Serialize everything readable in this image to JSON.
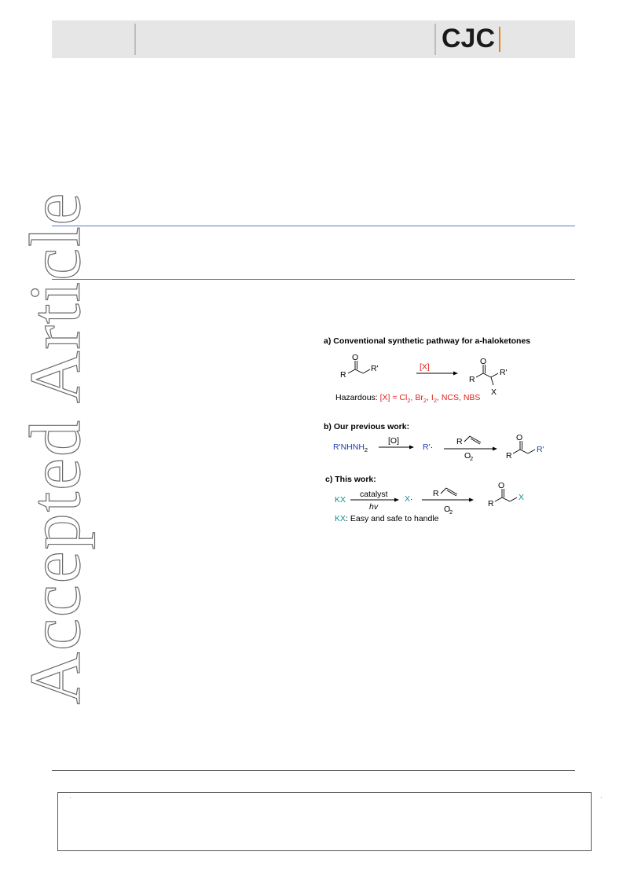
{
  "header": {
    "logo": "CJC"
  },
  "watermark": "Accepted Article",
  "scheme": {
    "a": {
      "title": "a) Conventional synthetic pathway for a-haloketones",
      "reagent": "[X]",
      "sm_r": "R",
      "sm_rp": "R'",
      "sm_o": "O",
      "prod_r": "R",
      "prod_rp": "R'",
      "prod_o": "O",
      "prod_x": "X",
      "hazard_label": "Hazardous:",
      "hazard_x": "[X] = Cl",
      "br": ", Br",
      "i": ", I",
      "rest": ", NCS, NBS",
      "sub2": "2"
    },
    "b": {
      "title": "b) Our previous work:",
      "start": "R'NHNH",
      "sub2": "2",
      "ox": "[O]",
      "radical": "R'",
      "alkene_r": "R",
      "o2": "O",
      "prod_o": "O",
      "prod_r": "R",
      "prod_rp": "R'"
    },
    "c": {
      "title": "c) This work:",
      "start": "KX",
      "catalyst": "catalyst",
      "hv": "hv",
      "radical": "X",
      "alkene_r": "R",
      "o2": "O",
      "sub2": "2",
      "prod_o": "O",
      "prod_r": "R",
      "prod_x": "X",
      "note_kx": "KX",
      "note": ": Easy and safe to handle"
    }
  }
}
